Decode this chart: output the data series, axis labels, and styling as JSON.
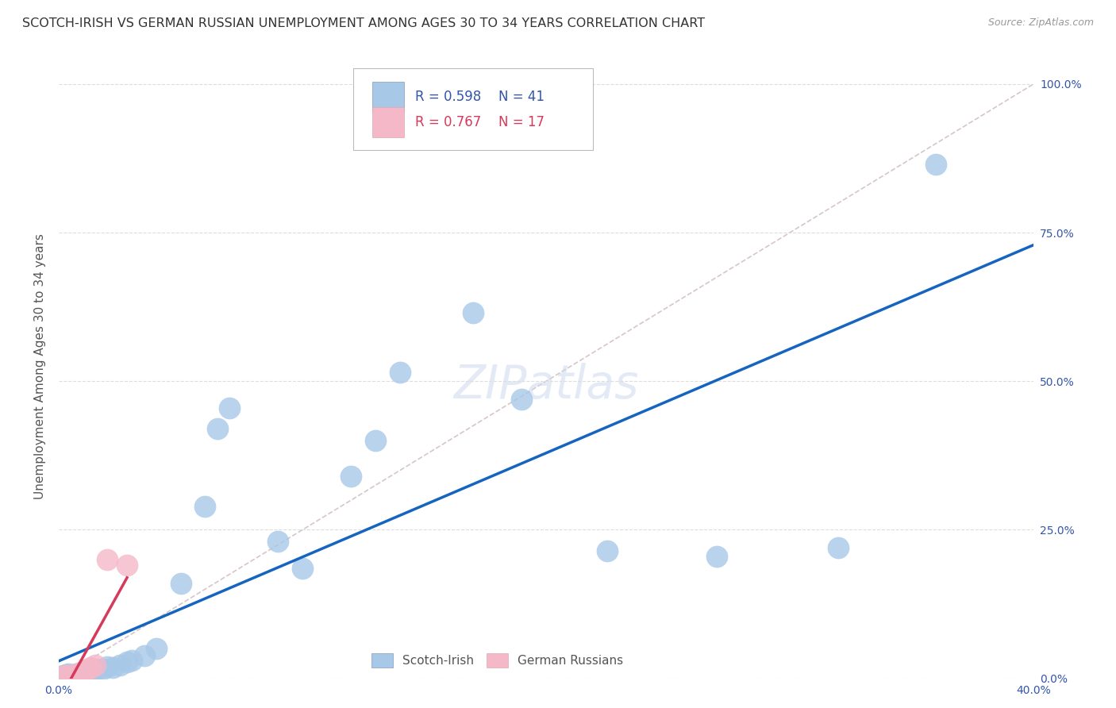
{
  "title": "SCOTCH-IRISH VS GERMAN RUSSIAN UNEMPLOYMENT AMONG AGES 30 TO 34 YEARS CORRELATION CHART",
  "source": "Source: ZipAtlas.com",
  "ylabel": "Unemployment Among Ages 30 to 34 years",
  "xlim": [
    0.0,
    0.4
  ],
  "ylim": [
    0.0,
    1.05
  ],
  "x_ticks": [
    0.0,
    0.05,
    0.1,
    0.15,
    0.2,
    0.25,
    0.3,
    0.35,
    0.4
  ],
  "x_tick_labels": [
    "0.0%",
    "",
    "",
    "",
    "",
    "",
    "",
    "",
    "40.0%"
  ],
  "y_ticks": [
    0.0,
    0.25,
    0.5,
    0.75,
    1.0
  ],
  "y_tick_labels": [
    "0.0%",
    "25.0%",
    "50.0%",
    "75.0%",
    "100.0%"
  ],
  "scotch_irish_R": 0.598,
  "scotch_irish_N": 41,
  "german_russian_R": 0.767,
  "german_russian_N": 17,
  "scotch_irish_color": "#a8c8e8",
  "scotch_irish_line_color": "#1565c0",
  "german_russian_color": "#f4b8c8",
  "german_russian_line_color": "#d63a5a",
  "diagonal_color": "#ccb8b8",
  "background_color": "#ffffff",
  "grid_color": "#dddddd",
  "title_fontsize": 11.5,
  "axis_label_fontsize": 11,
  "tick_fontsize": 10,
  "legend_fontsize": 12,
  "source_fontsize": 9,
  "scotch_irish_x": [
    0.001,
    0.002,
    0.002,
    0.003,
    0.003,
    0.004,
    0.004,
    0.005,
    0.006,
    0.007,
    0.008,
    0.009,
    0.01,
    0.011,
    0.012,
    0.013,
    0.015,
    0.016,
    0.018,
    0.02,
    0.022,
    0.025,
    0.028,
    0.03,
    0.035,
    0.04,
    0.05,
    0.06,
    0.065,
    0.07,
    0.09,
    0.1,
    0.12,
    0.13,
    0.14,
    0.17,
    0.19,
    0.225,
    0.27,
    0.32,
    0.36
  ],
  "scotch_irish_y": [
    0.003,
    0.004,
    0.005,
    0.003,
    0.006,
    0.004,
    0.007,
    0.005,
    0.006,
    0.007,
    0.006,
    0.008,
    0.009,
    0.01,
    0.012,
    0.008,
    0.014,
    0.016,
    0.015,
    0.02,
    0.018,
    0.022,
    0.028,
    0.03,
    0.038,
    0.05,
    0.16,
    0.29,
    0.42,
    0.455,
    0.23,
    0.185,
    0.34,
    0.4,
    0.515,
    0.615,
    0.47,
    0.215,
    0.205,
    0.22,
    0.865
  ],
  "german_russian_x": [
    0.001,
    0.002,
    0.003,
    0.003,
    0.004,
    0.005,
    0.006,
    0.007,
    0.008,
    0.009,
    0.01,
    0.011,
    0.012,
    0.013,
    0.015,
    0.02,
    0.028
  ],
  "german_russian_y": [
    0.002,
    0.003,
    0.003,
    0.005,
    0.004,
    0.005,
    0.006,
    0.007,
    0.008,
    0.01,
    0.012,
    0.014,
    0.016,
    0.018,
    0.022,
    0.2,
    0.19
  ],
  "si_line_x0": 0.0,
  "si_line_y0": -0.005,
  "si_line_x1": 0.4,
  "si_line_y1": 0.78,
  "gr_line_x0": 0.0,
  "gr_line_y0": -0.002,
  "gr_line_x1": 0.028,
  "gr_line_y1": 0.22
}
